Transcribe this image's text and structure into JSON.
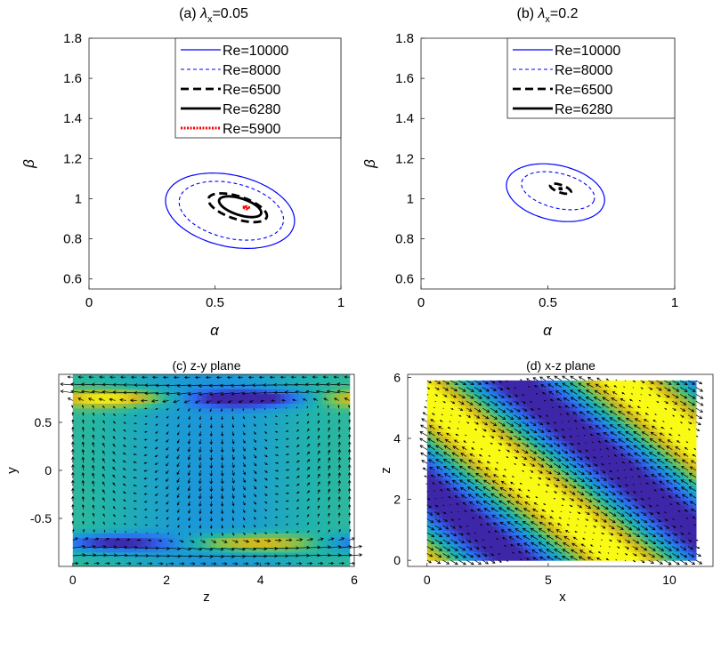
{
  "chart_data": [
    {
      "type": "line",
      "panel": "a",
      "title_prefix": "(a)",
      "title_symbol": "λ",
      "title_sub": "x",
      "title_value": "=0.05",
      "xlabel": "α",
      "ylabel": "β",
      "xlim": [
        0,
        1
      ],
      "ylim": [
        0.55,
        1.8
      ],
      "xticks": [
        "0",
        "0.5",
        "1"
      ],
      "yticks": [
        "0.6",
        "0.8",
        "1",
        "1.2",
        "1.4",
        "1.6",
        "1.8"
      ],
      "legend_position": "top-right",
      "series": [
        {
          "name": "Re=10000",
          "color": "#0000ff",
          "style": "solid",
          "cx": 0.56,
          "cy": 0.94,
          "rx": 0.265,
          "ry": 0.175,
          "tilt": 0.35
        },
        {
          "name": "Re=8000",
          "color": "#0000ff",
          "style": "dashed-thin",
          "cx": 0.565,
          "cy": 0.94,
          "rx": 0.215,
          "ry": 0.135,
          "tilt": 0.35
        },
        {
          "name": "Re=6500",
          "color": "#000000",
          "style": "dashed-thick",
          "cx": 0.59,
          "cy": 0.955,
          "rx": 0.125,
          "ry": 0.055,
          "tilt": 0.42
        },
        {
          "name": "Re=6280",
          "color": "#000000",
          "style": "solid-thick",
          "cx": 0.6,
          "cy": 0.96,
          "rx": 0.09,
          "ry": 0.04,
          "tilt": 0.42
        },
        {
          "name": "Re=5900",
          "color": "#ff0000",
          "style": "dotted-thick",
          "cx": 0.625,
          "cy": 0.955,
          "rx": 0.01,
          "ry": 0.005,
          "tilt": 0.42
        }
      ]
    },
    {
      "type": "line",
      "panel": "b",
      "title_prefix": "(b)",
      "title_symbol": "λ",
      "title_sub": "x",
      "title_value": "=0.2",
      "xlabel": "α",
      "ylabel": "β",
      "xlim": [
        0,
        1
      ],
      "ylim": [
        0.55,
        1.8
      ],
      "xticks": [
        "0",
        "0.5",
        "1"
      ],
      "yticks": [
        "0.6",
        "0.8",
        "1",
        "1.2",
        "1.4",
        "1.6",
        "1.8"
      ],
      "legend_position": "top-right",
      "series": [
        {
          "name": "Re=10000",
          "color": "#0000ff",
          "style": "solid",
          "cx": 0.53,
          "cy": 1.03,
          "rx": 0.2,
          "ry": 0.135,
          "tilt": 0.35
        },
        {
          "name": "Re=8000",
          "color": "#0000ff",
          "style": "dashed-thin",
          "cx": 0.54,
          "cy": 1.04,
          "rx": 0.15,
          "ry": 0.085,
          "tilt": 0.35
        },
        {
          "name": "Re=6500",
          "color": "#000000",
          "style": "dashed-thick",
          "cx": 0.55,
          "cy": 1.05,
          "rx": 0.045,
          "ry": 0.018,
          "tilt": 0.45
        },
        {
          "name": "Re=6280",
          "color": "#000000",
          "style": "solid-thick",
          "cx": 0.55,
          "cy": 1.05,
          "rx": 0.003,
          "ry": 0.002,
          "tilt": 0.45
        }
      ]
    },
    {
      "type": "heatmap",
      "panel": "c",
      "title": "(c) z-y plane",
      "xlabel": "z",
      "ylabel": "y",
      "xlim": [
        -0.3,
        6
      ],
      "ylim": [
        -1,
        1
      ],
      "xticks": [
        "0",
        "2",
        "4",
        "6"
      ],
      "yticks": [
        "-0.5",
        "0",
        "0.5"
      ],
      "field_xrange": [
        0,
        5.9
      ],
      "field_yrange": [
        -1,
        1
      ],
      "overlay": "quiver"
    },
    {
      "type": "heatmap",
      "panel": "d",
      "title": "(d) x-z plane",
      "xlabel": "x",
      "ylabel": "z",
      "xlim": [
        -0.8,
        11.8
      ],
      "ylim": [
        -0.2,
        6.1
      ],
      "xticks": [
        "0",
        "5",
        "10"
      ],
      "yticks": [
        "0",
        "2",
        "4",
        "6"
      ],
      "field_xrange": [
        0,
        11.1
      ],
      "field_yrange": [
        0,
        5.9
      ],
      "overlay": "quiver"
    }
  ],
  "colormap": [
    "#3e26a8",
    "#2e68f2",
    "#1b9ad6",
    "#22b5a8",
    "#7ac354",
    "#d4b91d",
    "#f9fb14"
  ]
}
